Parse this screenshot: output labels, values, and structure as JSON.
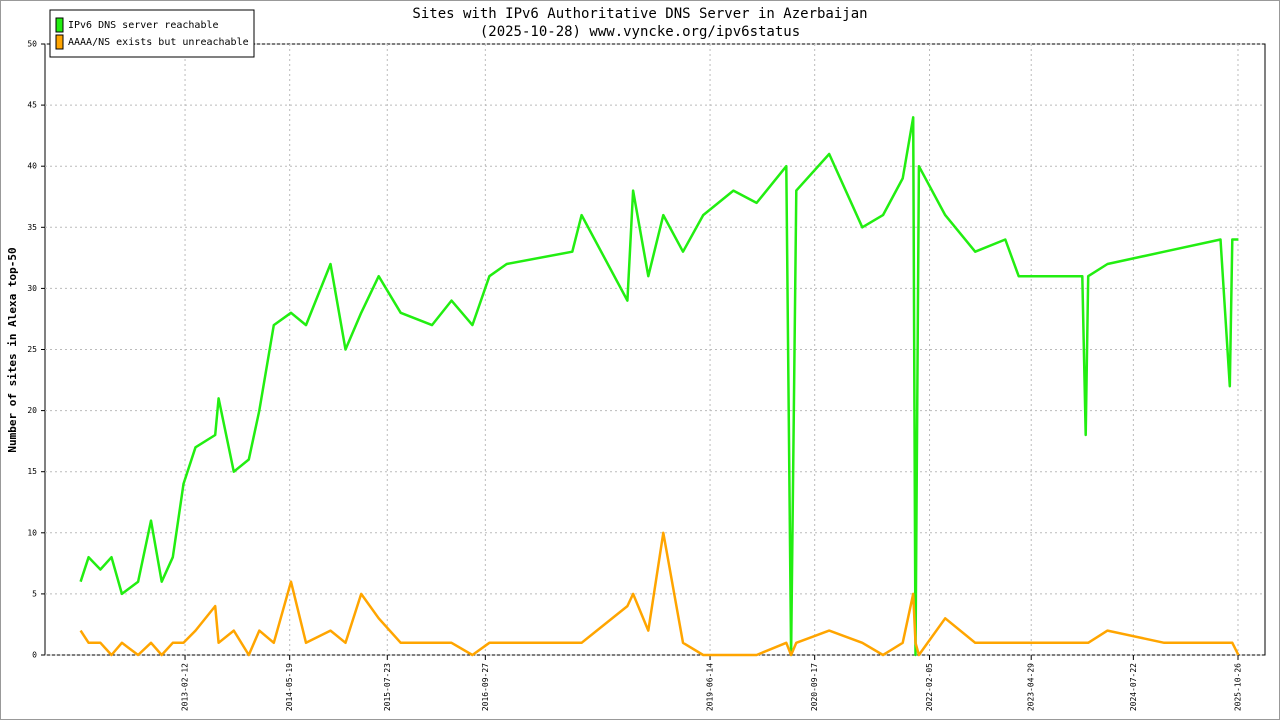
{
  "chart_data": {
    "type": "line",
    "title": "Sites with IPv6 Authoritative DNS Server in Azerbaijan",
    "subtitle": "(2025-10-28) www.vyncke.org/ipv6status",
    "y_label": "Number of sites in Alexa top-50",
    "x": [
      "2011-11-10",
      "2011-12-15",
      "2012-02-05",
      "2012-03-25",
      "2012-05-10",
      "2012-07-20",
      "2012-09-15",
      "2012-11-01",
      "2012-12-20",
      "2013-02-05",
      "2013-03-30",
      "2013-06-25",
      "2013-07-10",
      "2013-09-15",
      "2013-11-20",
      "2014-01-05",
      "2014-03-10",
      "2014-05-25",
      "2014-07-30",
      "2014-11-15",
      "2015-01-20",
      "2015-03-30",
      "2015-06-15",
      "2015-09-20",
      "2016-02-05",
      "2016-05-01",
      "2016-08-01",
      "2016-10-15",
      "2016-12-30",
      "2017-10-15",
      "2017-11-25",
      "2018-06-15",
      "2018-07-10",
      "2018-09-15",
      "2018-11-20",
      "2019-02-15",
      "2019-05-15",
      "2019-09-25",
      "2020-01-05",
      "2020-05-15",
      "2020-06-05",
      "2020-06-28",
      "2020-11-20",
      "2021-04-15",
      "2021-07-15",
      "2021-10-10",
      "2021-11-25",
      "2021-12-05",
      "2021-12-20",
      "2022-04-15",
      "2022-08-25",
      "2023-01-05",
      "2023-03-05",
      "2023-12-10",
      "2023-12-25",
      "2024-01-05",
      "2024-03-30",
      "2024-12-05",
      "2025-08-10",
      "2025-09-20",
      "2025-10-01",
      "2025-10-28"
    ],
    "series": [
      {
        "name": "IPv6 DNS server reachable",
        "color": "#22ee11",
        "values": [
          6,
          8,
          7,
          8,
          5,
          6,
          11,
          6,
          8,
          14,
          17,
          18,
          21,
          15,
          16,
          20,
          27,
          28,
          27,
          32,
          25,
          28,
          31,
          28,
          27,
          29,
          27,
          31,
          32,
          33,
          36,
          29,
          38,
          31,
          36,
          33,
          36,
          38,
          37,
          40,
          0,
          38,
          41,
          35,
          36,
          39,
          44,
          0,
          40,
          36,
          33,
          34,
          31,
          31,
          18,
          31,
          32,
          33,
          34,
          22,
          34,
          34
        ]
      },
      {
        "name": "AAAA/NS exists but unreachable",
        "color": "#ffa500",
        "values": [
          2,
          1,
          1,
          0,
          1,
          0,
          1,
          0,
          1,
          1,
          2,
          4,
          1,
          2,
          0,
          2,
          1,
          6,
          1,
          2,
          1,
          5,
          3,
          1,
          1,
          1,
          0,
          1,
          1,
          1,
          1,
          4,
          5,
          2,
          10,
          1,
          0,
          0,
          0,
          1,
          0,
          1,
          2,
          1,
          0,
          1,
          5,
          1,
          0,
          3,
          1,
          1,
          1,
          1,
          1,
          1,
          2,
          1,
          1,
          1,
          1,
          0
        ]
      }
    ],
    "xlim": [
      "2011-06-06",
      "2026-02-22"
    ],
    "xticks": [
      "2013-02-12",
      "2014-05-19",
      "2015-07-23",
      "2016-09-27",
      "2019-06-14",
      "2020-09-17",
      "2022-02-05",
      "2023-04-29",
      "2024-07-22",
      "2025-10-26"
    ],
    "ylim": [
      0,
      50
    ],
    "yticks": [
      0,
      5,
      10,
      15,
      20,
      25,
      30,
      35,
      40,
      45,
      50
    ],
    "grid": true,
    "legend": "upper-left"
  }
}
